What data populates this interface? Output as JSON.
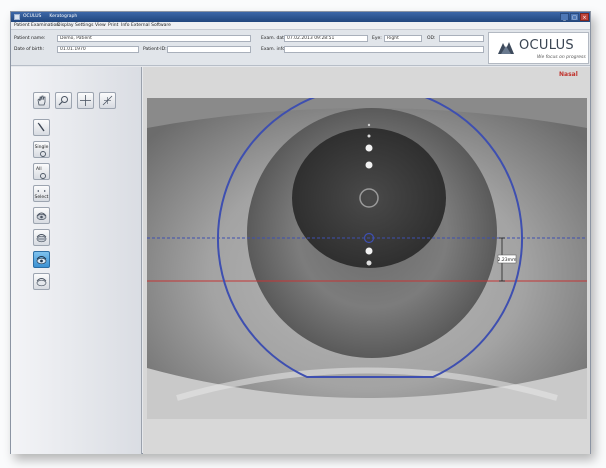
{
  "titlebar": {
    "app_title": "OCULUS",
    "module": "Keratograph",
    "controls": [
      "_",
      "□",
      "×"
    ]
  },
  "menu": [
    "Patient",
    "Examination",
    "Display",
    "Settings",
    "View",
    "Print",
    "Info",
    "External Software"
  ],
  "patient": {
    "name_label": "Patient name:",
    "name_value": "Demo, Patient",
    "dob_label": "Date of birth:",
    "dob_value": "01.01.1970",
    "patient_id_label": "Patient-ID:",
    "patient_id_value": ""
  },
  "exam": {
    "date_label": "Exam. date:",
    "date_value": "07.02.2013 09:28:51",
    "eye_label": "Eye:",
    "eye_value": "Right",
    "od_label": "OD:",
    "od_value": "",
    "info_label": "Exam. info:",
    "info_value": ""
  },
  "logo": {
    "name": "OCULUS",
    "tagline": "We focus on progress"
  },
  "tools": {
    "hand_icon": "hand-icon",
    "zoom_icon": "zoom-icon",
    "crosshair_icon": "crosshair-icon",
    "measure_icon": "measure-icon",
    "pen_icon": "pen-icon",
    "single_label": "Single",
    "all_label": "All",
    "select_label": "Select",
    "mode_icons": [
      "eye-mode-1-icon",
      "eye-mode-2-icon",
      "eye-mode-3-icon",
      "eye-mode-4-icon"
    ],
    "active_mode_index": 2
  },
  "viewer": {
    "orientation_label": "Nasal",
    "measurement_value": "2.23mm",
    "guide_color_blue": "#3e4fb0",
    "guide_color_red": "#c43535"
  }
}
